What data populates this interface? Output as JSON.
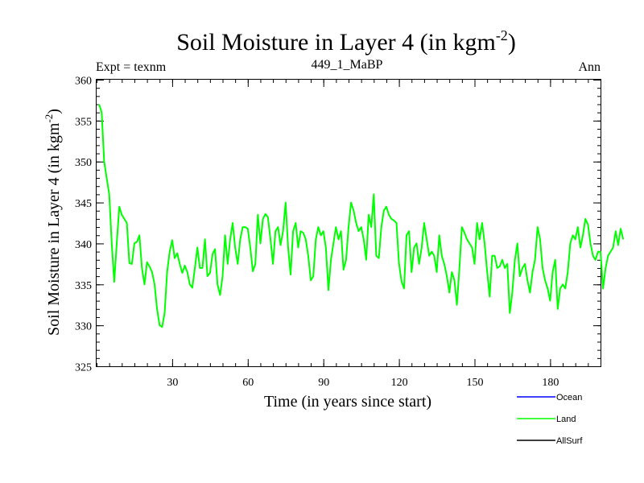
{
  "chart_data": {
    "type": "line",
    "title": "Soil Moisture in Layer 4 (in kgm",
    "title_sup": "-2",
    "title_close": ")",
    "subtitle_left": "Expt = texnm",
    "subtitle_center": "449_1_MaBP",
    "subtitle_right": "Ann",
    "xlabel": "Time (in years since start)",
    "ylabel": "Soil Moisture in Layer 4 (in kgm",
    "ylabel_sup": "-2",
    "ylabel_close": ")",
    "xlim": [
      0,
      200
    ],
    "ylim": [
      325,
      360
    ],
    "x_ticks": [
      {
        "value": 30,
        "label": "30"
      },
      {
        "value": 60,
        "label": "60"
      },
      {
        "value": 90,
        "label": "90"
      },
      {
        "value": 120,
        "label": "120"
      },
      {
        "value": 150,
        "label": "150"
      },
      {
        "value": 180,
        "label": "180"
      }
    ],
    "y_ticks": [
      {
        "value": 325,
        "label": "325"
      },
      {
        "value": 330,
        "label": "330"
      },
      {
        "value": 335,
        "label": "335"
      },
      {
        "value": 340,
        "label": "340"
      },
      {
        "value": 345,
        "label": "345"
      },
      {
        "value": 350,
        "label": "350"
      },
      {
        "value": 355,
        "label": "355"
      },
      {
        "value": 360,
        "label": "360"
      }
    ],
    "x_minor_step": 5,
    "y_minor_step": 1,
    "legend": [
      {
        "name": "Ocean",
        "color": "#0000ff"
      },
      {
        "name": "Land",
        "color": "#00ff00"
      },
      {
        "name": "AllSurf",
        "color": "#000000"
      }
    ],
    "series": [
      {
        "name": "Land",
        "color": "#00ff00",
        "x_start": 1,
        "x_step": 1,
        "values": [
          357,
          356,
          350,
          348,
          346,
          340,
          335.3,
          340,
          344.5,
          343.5,
          343,
          342.5,
          337.6,
          337.5,
          340,
          340.2,
          341,
          337,
          335,
          337.7,
          337.2,
          336.5,
          335,
          332,
          330,
          329.8,
          331.5,
          336.5,
          339,
          340.4,
          338.2,
          338.8,
          337.5,
          336.4,
          337.3,
          336.5,
          335,
          334.6,
          337,
          339.5,
          337,
          337,
          340.5,
          336,
          336.4,
          338.7,
          339.3,
          335,
          333.7,
          336,
          341,
          337.5,
          340.5,
          342.5,
          339.5,
          337.5,
          340.5,
          342,
          342,
          341.8,
          339.5,
          336.6,
          337.5,
          343.5,
          340,
          343,
          343.6,
          343.2,
          340.5,
          337.5,
          341.5,
          342,
          339.8,
          341.5,
          345,
          339.5,
          336.2,
          341.5,
          342.5,
          339.5,
          341.5,
          341.3,
          340.5,
          338.5,
          335.5,
          336,
          340.5,
          342,
          341,
          341.5,
          339.5,
          334.3,
          338,
          340,
          342,
          340.5,
          341.5,
          336.8,
          338,
          342,
          345,
          344,
          342.5,
          341.5,
          342,
          340.5,
          338,
          343.5,
          342,
          346,
          338.5,
          338.2,
          342,
          344,
          344.5,
          343.5,
          343,
          342.8,
          342.5,
          337.6,
          335.4,
          334.5,
          341,
          341.5,
          336.5,
          339.5,
          340,
          337.5,
          339.5,
          342.5,
          340.5,
          338.5,
          339,
          338.5,
          336.5,
          341,
          338.5,
          337.5,
          336,
          334,
          336.5,
          335.5,
          332.5,
          337,
          342,
          341.3,
          340.5,
          340,
          339.5,
          337.5,
          342.5,
          340.5,
          342.5,
          340,
          336.5,
          333.5,
          338.5,
          338.5,
          337,
          337.2,
          338,
          337,
          337.5,
          331.5,
          334,
          338,
          340,
          336,
          337,
          337.5,
          335.5,
          334,
          336.5,
          338,
          342,
          340.5,
          337,
          335.5,
          334.5,
          333,
          336.5,
          338,
          332,
          334.5,
          335,
          334.5,
          336.5,
          340,
          341,
          340.5,
          342,
          339.5,
          341,
          343,
          342.3,
          340,
          338.5,
          338,
          339,
          339,
          334.5,
          337,
          338.5,
          339,
          339.5,
          341.5,
          339.8,
          341.8,
          340.5
        ]
      }
    ]
  }
}
